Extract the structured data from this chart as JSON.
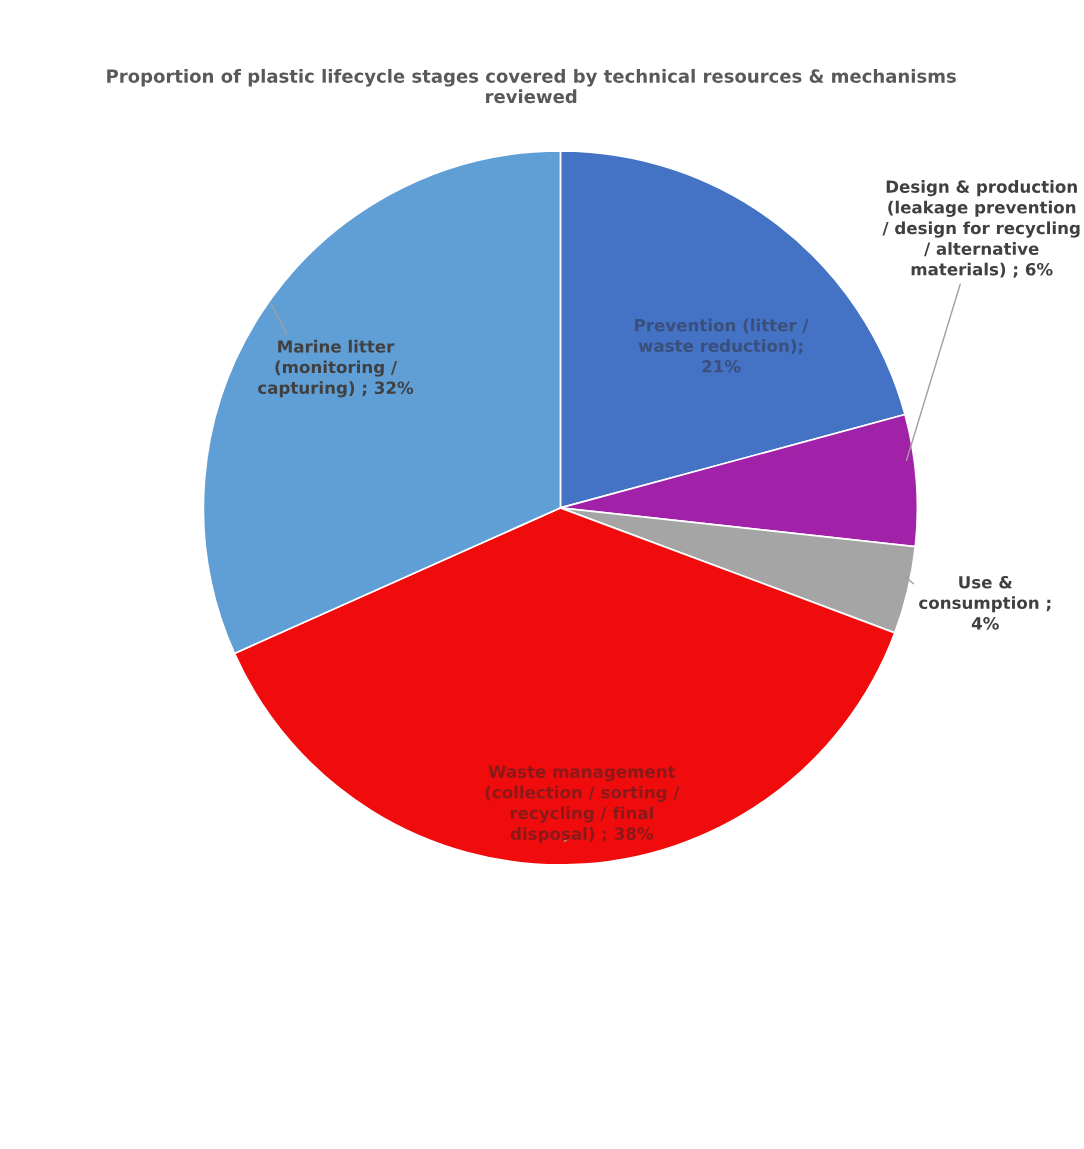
{
  "chart_data": {
    "type": "pie",
    "title": "Proportion of plastic lifecycle stages covered by technical resources & mechanisms\nreviewed",
    "categories": [
      "Prevention (litter /\nwaste reduction)",
      "Design & production\n(leakage prevention\n/ design for recycling\n/ alternative\nmaterials)",
      "Use &\nconsumption",
      "Waste management\n(collection / sorting /\nrecycling / final\ndisposal)",
      "Marine litter\n(monitoring /\ncapturing)"
    ],
    "values": [
      21,
      6,
      4,
      38,
      32
    ],
    "colors": [
      "#4472c4",
      "#a221a9",
      "#a5a5a5",
      "#f00c0c",
      "#5f9fd6"
    ],
    "value_labels": [
      "; 21%",
      "; 6%",
      "; 4%",
      "; 38%",
      "; 32%"
    ]
  }
}
